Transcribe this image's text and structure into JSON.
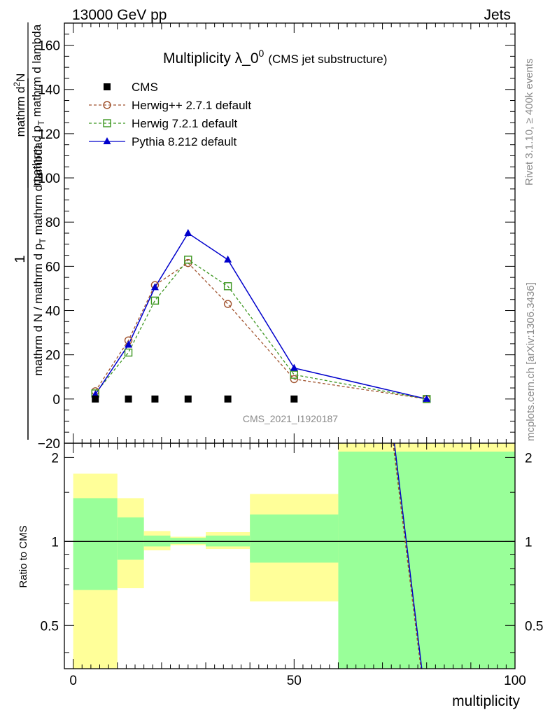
{
  "header": {
    "left": "13000 GeV pp",
    "right": "Jets"
  },
  "side_labels": {
    "rivet": "Rivet 3.1.10, ≥ 400k events",
    "mcplots": "mcplots.cern.ch [arXiv:1306.3436]"
  },
  "chart_data": {
    "type": "line",
    "title": "Multiplicity λ_0",
    "title_sup": "0",
    "title_note": "(CMS jet substructure)",
    "watermark": "CMS_2021_I1920187",
    "ylabel_parts": {
      "num": "1",
      "den": "mathrm d N / mathrm d p",
      "den_sub": "T",
      "den_tail": "mathrm d lambda",
      "num2": "mathrm d",
      "num2_sup": "2",
      "num2_tail": "N",
      "den2": "mathrm d p",
      "den2_sub": "T",
      "den2_tail": "mathrm d lambda"
    },
    "ylabel_text": {
      "a": "1",
      "b": "mathrm d N / mathrm d p",
      "c": "T",
      "d": "mathrm d",
      "e": "mathrm d lambda"
    },
    "xlabel": "multiplicity",
    "ratio_ylabel": "Ratio to CMS",
    "xlim": [
      -2,
      100
    ],
    "ylim": [
      -20,
      170
    ],
    "x_ticks": [
      "0",
      "50",
      "100"
    ],
    "y_ticks": [
      "−20",
      "0",
      "20",
      "40",
      "60",
      "80",
      "100",
      "120",
      "140",
      "160"
    ],
    "ratio_ylim": [
      0.35,
      2.25
    ],
    "ratio_ticks": [
      "0.5",
      "1",
      "2"
    ],
    "x": [
      5,
      12.5,
      18.5,
      26,
      35,
      50,
      80
    ],
    "series": [
      {
        "name": "CMS",
        "marker": "square",
        "color": "#000000",
        "values": [
          0,
          0,
          0,
          0,
          0,
          0,
          0
        ]
      },
      {
        "name": "Herwig++ 2.7.1 default",
        "marker": "circle",
        "color": "#a0522d",
        "values": [
          3.5,
          26.5,
          51.5,
          61.5,
          43.0,
          9.0,
          0.0
        ]
      },
      {
        "name": "Herwig 7.2.1 default",
        "marker": "open-square",
        "color": "#3c9620",
        "values": [
          2.5,
          21.0,
          44.5,
          63.0,
          51.0,
          11.0,
          0.0
        ]
      },
      {
        "name": "Pythia 8.212 default",
        "marker": "triangle",
        "color": "#0000cc",
        "values": [
          2.0,
          24.5,
          50.5,
          75.0,
          63.0,
          14.0,
          0.0
        ]
      }
    ],
    "ratio_bands": [
      {
        "x0": 0,
        "x1": 10,
        "y_lo": 0.35,
        "y_hi": 1.75,
        "g_lo": 0.67,
        "g_hi": 1.43
      },
      {
        "x0": 10,
        "x1": 16,
        "y_lo": 0.68,
        "y_hi": 1.43,
        "g_lo": 0.86,
        "g_hi": 1.22
      },
      {
        "x0": 16,
        "x1": 22,
        "y_lo": 0.93,
        "y_hi": 1.09,
        "g_lo": 0.96,
        "g_hi": 1.05
      },
      {
        "x0": 22,
        "x1": 30,
        "y_lo": 0.97,
        "y_hi": 1.04,
        "g_lo": 0.98,
        "g_hi": 1.03
      },
      {
        "x0": 30,
        "x1": 40,
        "y_lo": 0.94,
        "y_hi": 1.08,
        "g_lo": 0.96,
        "g_hi": 1.05
      },
      {
        "x0": 40,
        "x1": 60,
        "y_lo": 0.61,
        "y_hi": 1.48,
        "g_lo": 0.84,
        "g_hi": 1.25
      },
      {
        "x0": 60,
        "x1": 100,
        "y_lo": 0.35,
        "y_hi": 2.25,
        "g_lo": 0.35,
        "g_hi": 2.1
      }
    ],
    "ratio_lines": [
      {
        "name": "Herwig 7.2.1 default",
        "color": "#3c9620",
        "dash": true,
        "points": [
          [
            72.5,
            2.25
          ],
          [
            78.8,
            0.35
          ]
        ]
      },
      {
        "name": "Herwig++ 2.7.1 default",
        "color": "#a0522d",
        "dash": true,
        "points": [
          [
            72.4,
            2.25
          ],
          [
            78.7,
            0.35
          ]
        ]
      },
      {
        "name": "Pythia 8.212 default",
        "color": "#0000cc",
        "dash": false,
        "points": [
          [
            72.7,
            2.25
          ],
          [
            78.9,
            0.35
          ]
        ]
      }
    ]
  }
}
